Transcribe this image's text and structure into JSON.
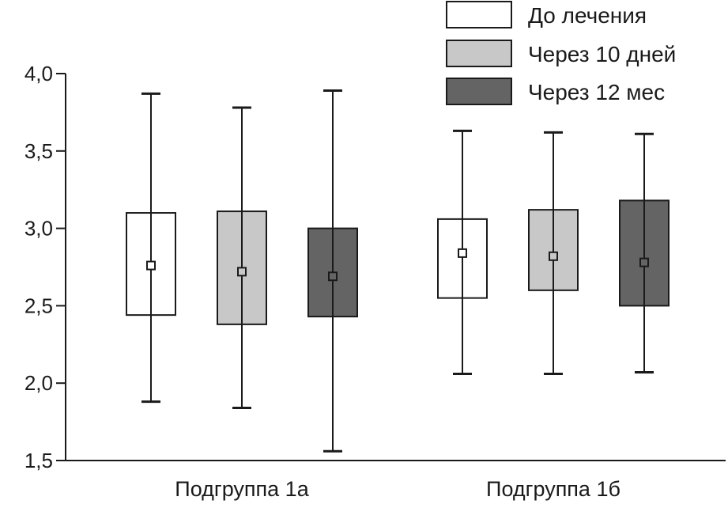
{
  "chart_data": {
    "type": "box",
    "ylim": [
      1.5,
      4.0
    ],
    "yticks": [
      1.5,
      2.0,
      2.5,
      3.0,
      3.5,
      4.0
    ],
    "ytick_labels": [
      "1,5",
      "2,0",
      "2,5",
      "3,0",
      "3,5",
      "4,0"
    ],
    "categories": [
      "Подгруппа 1а",
      "Подгруппа 1б"
    ],
    "legend_position": "top-right",
    "grid": false,
    "series": [
      {
        "name": "До лечения",
        "color": "#ffffff",
        "boxes": [
          {
            "whisker_low": 1.88,
            "box_low": 2.44,
            "center": 2.76,
            "box_high": 3.1,
            "whisker_high": 3.87
          },
          {
            "whisker_low": 2.06,
            "box_low": 2.55,
            "center": 2.84,
            "box_high": 3.06,
            "whisker_high": 3.63
          }
        ]
      },
      {
        "name": "Через 10 дней",
        "color": "#c8c8c8",
        "boxes": [
          {
            "whisker_low": 1.84,
            "box_low": 2.38,
            "center": 2.72,
            "box_high": 3.11,
            "whisker_high": 3.78
          },
          {
            "whisker_low": 2.06,
            "box_low": 2.6,
            "center": 2.82,
            "box_high": 3.12,
            "whisker_high": 3.62
          }
        ]
      },
      {
        "name": "Через 12 мес",
        "color": "#646464",
        "boxes": [
          {
            "whisker_low": 1.56,
            "box_low": 2.43,
            "center": 2.69,
            "box_high": 3.0,
            "whisker_high": 3.89
          },
          {
            "whisker_low": 2.07,
            "box_low": 2.5,
            "center": 2.78,
            "box_high": 3.18,
            "whisker_high": 3.61
          }
        ]
      }
    ]
  }
}
